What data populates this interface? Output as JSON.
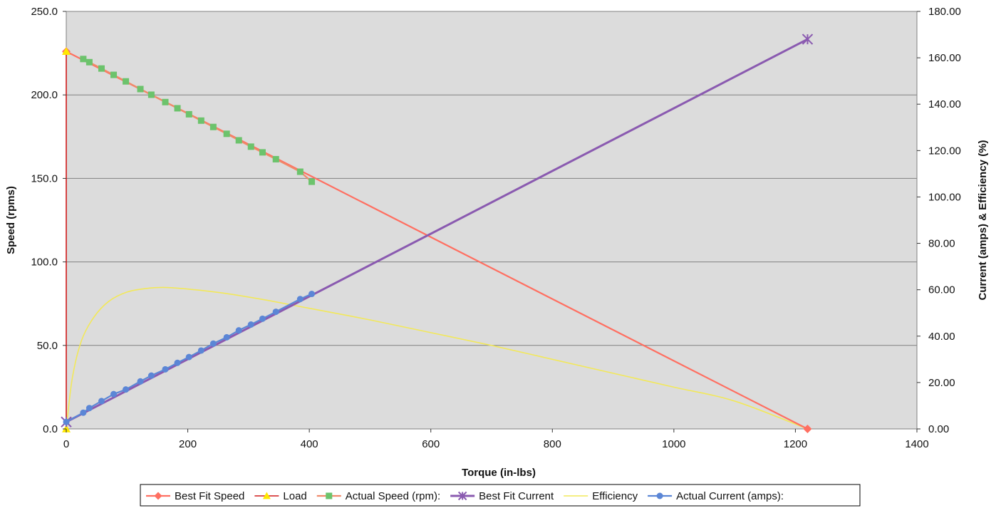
{
  "chart_data": {
    "type": "line",
    "xlabel": "Torque (in-lbs)",
    "ylabel": "Speed (rpms)",
    "y2label": "Current (amps) & Efficiency (%)",
    "xlim": [
      0,
      1400
    ],
    "ylim": [
      0,
      250
    ],
    "y2lim": [
      0,
      180
    ],
    "x_ticks": [
      "0",
      "200",
      "400",
      "600",
      "800",
      "1000",
      "1200",
      "1400"
    ],
    "y_ticks": [
      "0.0",
      "50.0",
      "100.0",
      "150.0",
      "200.0",
      "250.0"
    ],
    "y2_ticks": [
      "0.00",
      "20.00",
      "40.00",
      "60.00",
      "80.00",
      "100.00",
      "120.00",
      "140.00",
      "160.00",
      "180.00"
    ],
    "grid": "horizontal",
    "legend_position": "bottom",
    "colors": {
      "plot_bg": "#dcdcdc",
      "grid": "#808080",
      "best_fit_speed": "#ff6f61",
      "load": "#d11a1a",
      "load_marker": "#ffe800",
      "actual_speed_line": "#f08a6a",
      "actual_speed_marker": "#6cc36c",
      "best_fit_current": "#8a5ab0",
      "efficiency": "#f2e85a",
      "actual_current": "#5b86d6"
    },
    "series": [
      {
        "name": "Best Fit Speed",
        "axis": "left",
        "marker": "diamond",
        "x": [
          0,
          1220
        ],
        "y": [
          226,
          0
        ]
      },
      {
        "name": "Load",
        "axis": "left",
        "marker": "triangle",
        "x": [
          0,
          0
        ],
        "y": [
          226,
          0
        ]
      },
      {
        "name": "Actual Speed (rpm):",
        "axis": "left",
        "marker": "square",
        "x": [
          28,
          38,
          58,
          78,
          98,
          122,
          140,
          163,
          183,
          202,
          222,
          242,
          264,
          284,
          304,
          323,
          345,
          385,
          404
        ],
        "y": [
          221.5,
          219.6,
          215.8,
          212.0,
          208.1,
          203.5,
          200.1,
          195.7,
          192.0,
          188.4,
          184.6,
          180.8,
          176.7,
          172.8,
          169.0,
          165.6,
          161.5,
          154.0,
          148.0
        ]
      },
      {
        "name": "Best Fit Current",
        "axis": "right",
        "marker": "star",
        "x": [
          0,
          1220
        ],
        "y": [
          3.0,
          168.0
        ]
      },
      {
        "name": "Efficiency",
        "axis": "right",
        "marker": "none",
        "x": [
          0,
          10,
          25,
          45,
          70,
          100,
          130,
          160,
          200,
          260,
          330,
          400,
          500,
          600,
          700,
          800,
          900,
          1000,
          1100,
          1220
        ],
        "y": [
          0,
          22,
          38,
          48,
          55,
          59,
          60.5,
          61,
          60.3,
          58.5,
          55.5,
          52,
          47,
          41.5,
          36,
          30,
          24,
          18,
          12,
          0
        ]
      },
      {
        "name": "Actual Current (amps):",
        "axis": "right",
        "marker": "circle",
        "x": [
          0,
          28,
          38,
          58,
          78,
          98,
          122,
          140,
          163,
          183,
          202,
          222,
          242,
          264,
          284,
          304,
          323,
          345,
          385,
          404
        ],
        "y": [
          3.0,
          7.0,
          9.0,
          12.0,
          15.0,
          17.0,
          20.5,
          23.0,
          25.7,
          28.5,
          31.0,
          33.8,
          36.8,
          39.5,
          42.5,
          45.0,
          47.5,
          50.5,
          56.0,
          58.2
        ]
      }
    ]
  }
}
